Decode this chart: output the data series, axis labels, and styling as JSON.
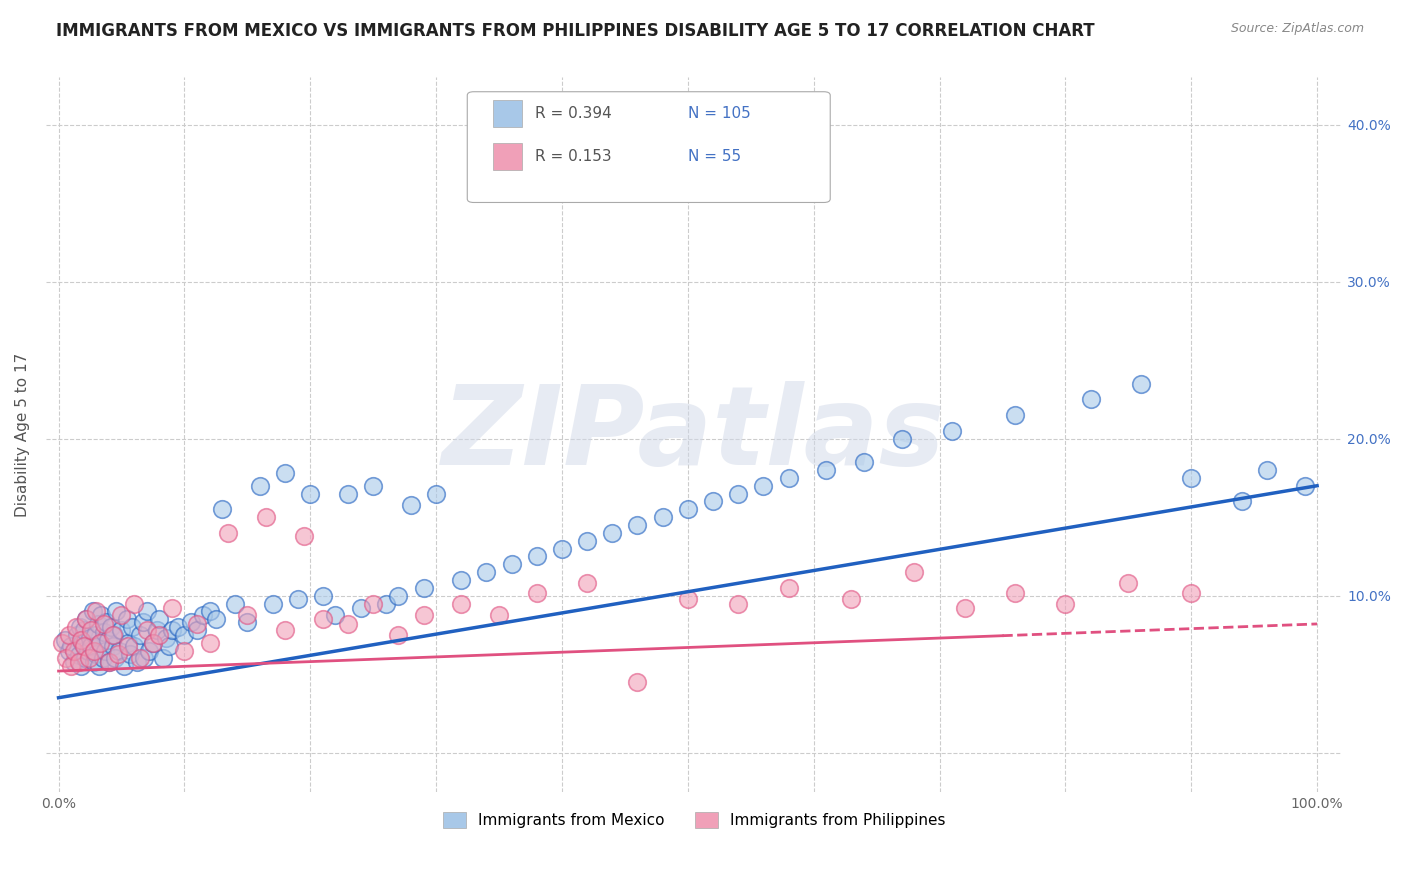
{
  "title": "IMMIGRANTS FROM MEXICO VS IMMIGRANTS FROM PHILIPPINES DISABILITY AGE 5 TO 17 CORRELATION CHART",
  "source_text": "Source: ZipAtlas.com",
  "ylabel": "Disability Age 5 to 17",
  "xlim": [
    -0.01,
    1.02
  ],
  "ylim": [
    -0.025,
    0.43
  ],
  "xticks": [
    0.0,
    0.1,
    0.2,
    0.3,
    0.4,
    0.5,
    0.6,
    0.7,
    0.8,
    0.9,
    1.0
  ],
  "xticklabels": [
    "0.0%",
    "",
    "",
    "",
    "",
    "",
    "",
    "",
    "",
    "",
    "100.0%"
  ],
  "yticks": [
    0.0,
    0.1,
    0.2,
    0.3,
    0.4
  ],
  "yticklabels_left": [
    "",
    "",
    "",
    "",
    ""
  ],
  "yticklabels_right": [
    "",
    "10.0%",
    "20.0%",
    "30.0%",
    "40.0%"
  ],
  "mexico_color": "#a8c8e8",
  "philippines_color": "#f0a0b8",
  "mexico_line_color": "#2060c0",
  "philippines_line_color": "#e05080",
  "R_mexico": 0.394,
  "N_mexico": 105,
  "R_philippines": 0.153,
  "N_philippines": 55,
  "legend_label_mexico": "Immigrants from Mexico",
  "legend_label_philippines": "Immigrants from Philippines",
  "watermark": "ZIPatlas",
  "title_fontsize": 12,
  "axis_label_fontsize": 11,
  "tick_fontsize": 10,
  "background_color": "#ffffff",
  "grid_color": "#cccccc",
  "mexico_trend_y_start": 0.035,
  "mexico_trend_y_end": 0.17,
  "philippines_trend_y_start": 0.052,
  "philippines_trend_y_end": 0.082,
  "mexico_scatter_x": [
    0.005,
    0.008,
    0.01,
    0.012,
    0.015,
    0.016,
    0.017,
    0.018,
    0.019,
    0.02,
    0.021,
    0.022,
    0.023,
    0.025,
    0.026,
    0.027,
    0.028,
    0.029,
    0.03,
    0.031,
    0.032,
    0.033,
    0.034,
    0.035,
    0.036,
    0.037,
    0.038,
    0.039,
    0.04,
    0.042,
    0.043,
    0.044,
    0.045,
    0.046,
    0.048,
    0.05,
    0.052,
    0.054,
    0.055,
    0.057,
    0.058,
    0.06,
    0.062,
    0.065,
    0.067,
    0.068,
    0.07,
    0.072,
    0.075,
    0.078,
    0.08,
    0.083,
    0.085,
    0.088,
    0.09,
    0.095,
    0.1,
    0.105,
    0.11,
    0.115,
    0.12,
    0.125,
    0.13,
    0.14,
    0.15,
    0.16,
    0.17,
    0.18,
    0.19,
    0.2,
    0.21,
    0.22,
    0.23,
    0.24,
    0.25,
    0.26,
    0.27,
    0.28,
    0.29,
    0.3,
    0.32,
    0.34,
    0.36,
    0.38,
    0.4,
    0.42,
    0.44,
    0.46,
    0.48,
    0.5,
    0.52,
    0.54,
    0.56,
    0.58,
    0.61,
    0.64,
    0.67,
    0.71,
    0.76,
    0.82,
    0.86,
    0.9,
    0.94,
    0.96,
    0.99
  ],
  "mexico_scatter_y": [
    0.072,
    0.065,
    0.068,
    0.058,
    0.075,
    0.062,
    0.08,
    0.055,
    0.07,
    0.078,
    0.06,
    0.085,
    0.065,
    0.073,
    0.068,
    0.09,
    0.058,
    0.075,
    0.063,
    0.082,
    0.055,
    0.07,
    0.088,
    0.06,
    0.077,
    0.065,
    0.083,
    0.072,
    0.058,
    0.08,
    0.068,
    0.075,
    0.06,
    0.09,
    0.065,
    0.078,
    0.055,
    0.085,
    0.07,
    0.063,
    0.08,
    0.068,
    0.058,
    0.075,
    0.083,
    0.06,
    0.09,
    0.065,
    0.07,
    0.078,
    0.085,
    0.06,
    0.073,
    0.068,
    0.078,
    0.08,
    0.075,
    0.083,
    0.078,
    0.088,
    0.09,
    0.085,
    0.155,
    0.095,
    0.083,
    0.17,
    0.095,
    0.178,
    0.098,
    0.165,
    0.1,
    0.088,
    0.165,
    0.092,
    0.17,
    0.095,
    0.1,
    0.158,
    0.105,
    0.165,
    0.11,
    0.115,
    0.12,
    0.125,
    0.13,
    0.135,
    0.14,
    0.145,
    0.15,
    0.155,
    0.16,
    0.165,
    0.17,
    0.175,
    0.18,
    0.185,
    0.2,
    0.205,
    0.215,
    0.225,
    0.235,
    0.175,
    0.16,
    0.18,
    0.17
  ],
  "philippines_scatter_x": [
    0.003,
    0.006,
    0.008,
    0.01,
    0.012,
    0.014,
    0.016,
    0.018,
    0.02,
    0.022,
    0.024,
    0.026,
    0.028,
    0.03,
    0.033,
    0.036,
    0.04,
    0.043,
    0.047,
    0.05,
    0.055,
    0.06,
    0.065,
    0.07,
    0.075,
    0.08,
    0.09,
    0.1,
    0.11,
    0.12,
    0.135,
    0.15,
    0.165,
    0.18,
    0.195,
    0.21,
    0.23,
    0.25,
    0.27,
    0.29,
    0.32,
    0.35,
    0.38,
    0.42,
    0.46,
    0.5,
    0.54,
    0.58,
    0.63,
    0.68,
    0.72,
    0.76,
    0.8,
    0.85,
    0.9
  ],
  "philippines_scatter_y": [
    0.07,
    0.06,
    0.075,
    0.055,
    0.065,
    0.08,
    0.058,
    0.072,
    0.068,
    0.085,
    0.06,
    0.078,
    0.065,
    0.09,
    0.07,
    0.082,
    0.058,
    0.075,
    0.063,
    0.088,
    0.068,
    0.095,
    0.06,
    0.078,
    0.07,
    0.075,
    0.092,
    0.065,
    0.082,
    0.07,
    0.14,
    0.088,
    0.15,
    0.078,
    0.138,
    0.085,
    0.082,
    0.095,
    0.075,
    0.088,
    0.095,
    0.088,
    0.102,
    0.108,
    0.045,
    0.098,
    0.095,
    0.105,
    0.098,
    0.115,
    0.092,
    0.102,
    0.095,
    0.108,
    0.102
  ]
}
